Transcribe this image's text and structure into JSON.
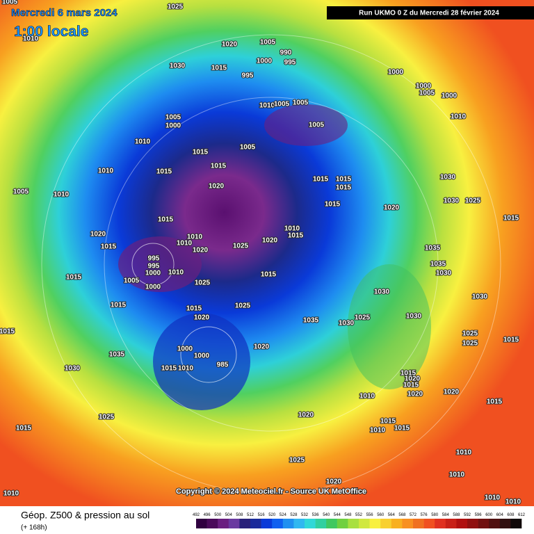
{
  "header": {
    "date": "Mercredi 6 mars 2024",
    "time": "1:00 locale",
    "run": "Run UKMO 0 Z du Mercredi 28 février 2024"
  },
  "footer": {
    "copyright": "Copyright © 2024 Meteociel.fr - Source UK MetOffice",
    "field": "Géop. Z500 & pression au sol",
    "lead": "(+ 168h)",
    "scale": [
      492,
      496,
      500,
      504,
      508,
      512,
      516,
      520,
      524,
      528,
      532,
      536,
      540,
      544,
      548,
      552,
      556,
      560,
      564,
      568,
      572,
      576,
      580,
      584,
      588,
      592,
      596,
      600,
      604,
      608,
      612
    ]
  },
  "map_labels": [
    "1005",
    "1025",
    "1010",
    "1020",
    "1005",
    "990",
    "995",
    "1000",
    "1030",
    "1015",
    "995",
    "1000",
    "1000",
    "1005",
    "1000",
    "1010",
    "1005",
    "1005",
    "1010",
    "1005",
    "1000",
    "1005",
    "1010",
    "1005",
    "1015",
    "1010",
    "1015",
    "1015",
    "1030",
    "1015",
    "1015",
    "1015",
    "1020",
    "1005",
    "1010",
    "1030",
    "1025",
    "1015",
    "1020",
    "1015",
    "1015",
    "1010",
    "1010",
    "1020",
    "1015",
    "1020",
    "1010",
    "1015",
    "1020",
    "1025",
    "1035",
    "995",
    "995",
    "1035",
    "1030",
    "1015",
    "1000",
    "1010",
    "1015",
    "1005",
    "1025",
    "1000",
    "1030",
    "1030",
    "1015",
    "1015",
    "1025",
    "1020",
    "1025",
    "1030",
    "1035",
    "1030",
    "1015",
    "1025",
    "1025",
    "1015",
    "1020",
    "1035",
    "1000",
    "1000",
    "985",
    "1030",
    "1015",
    "1010",
    "1015",
    "1020",
    "1015",
    "1020",
    "1010",
    "1020",
    "1015",
    "1025",
    "1020",
    "1015",
    "1015",
    "1010",
    "1015",
    "1025",
    "1010",
    "1010",
    "1020",
    "1010",
    "1010",
    "1010"
  ]
}
